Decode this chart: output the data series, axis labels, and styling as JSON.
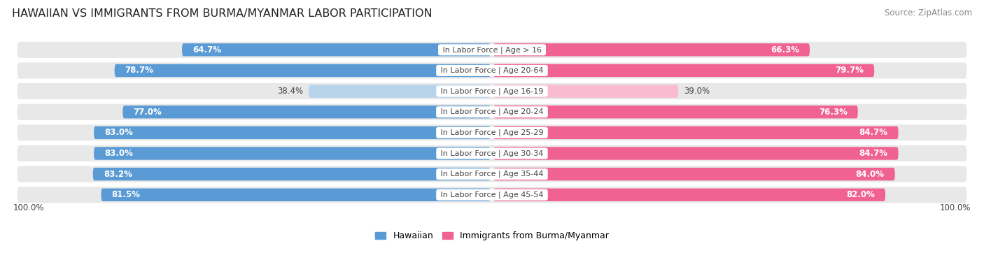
{
  "title": "HAWAIIAN VS IMMIGRANTS FROM BURMA/MYANMAR LABOR PARTICIPATION",
  "source": "Source: ZipAtlas.com",
  "categories": [
    "In Labor Force | Age > 16",
    "In Labor Force | Age 20-64",
    "In Labor Force | Age 16-19",
    "In Labor Force | Age 20-24",
    "In Labor Force | Age 25-29",
    "In Labor Force | Age 30-34",
    "In Labor Force | Age 35-44",
    "In Labor Force | Age 45-54"
  ],
  "hawaiian_values": [
    64.7,
    78.7,
    38.4,
    77.0,
    83.0,
    83.0,
    83.2,
    81.5
  ],
  "immigrant_values": [
    66.3,
    79.7,
    39.0,
    76.3,
    84.7,
    84.7,
    84.0,
    82.0
  ],
  "hawaiian_color": "#5b9bd5",
  "hawaiian_color_light": "#b8d4ec",
  "immigrant_color": "#f06292",
  "immigrant_color_light": "#f8bbd0",
  "row_bg_color": "#e8e8e8",
  "label_color_dark": "#444444",
  "label_color_white": "#ffffff",
  "max_value": 100.0,
  "bar_height": 0.62,
  "title_fontsize": 11.5,
  "source_fontsize": 8.5,
  "value_fontsize": 8.5,
  "category_fontsize": 8,
  "legend_fontsize": 9,
  "footer_value": "100.0%"
}
